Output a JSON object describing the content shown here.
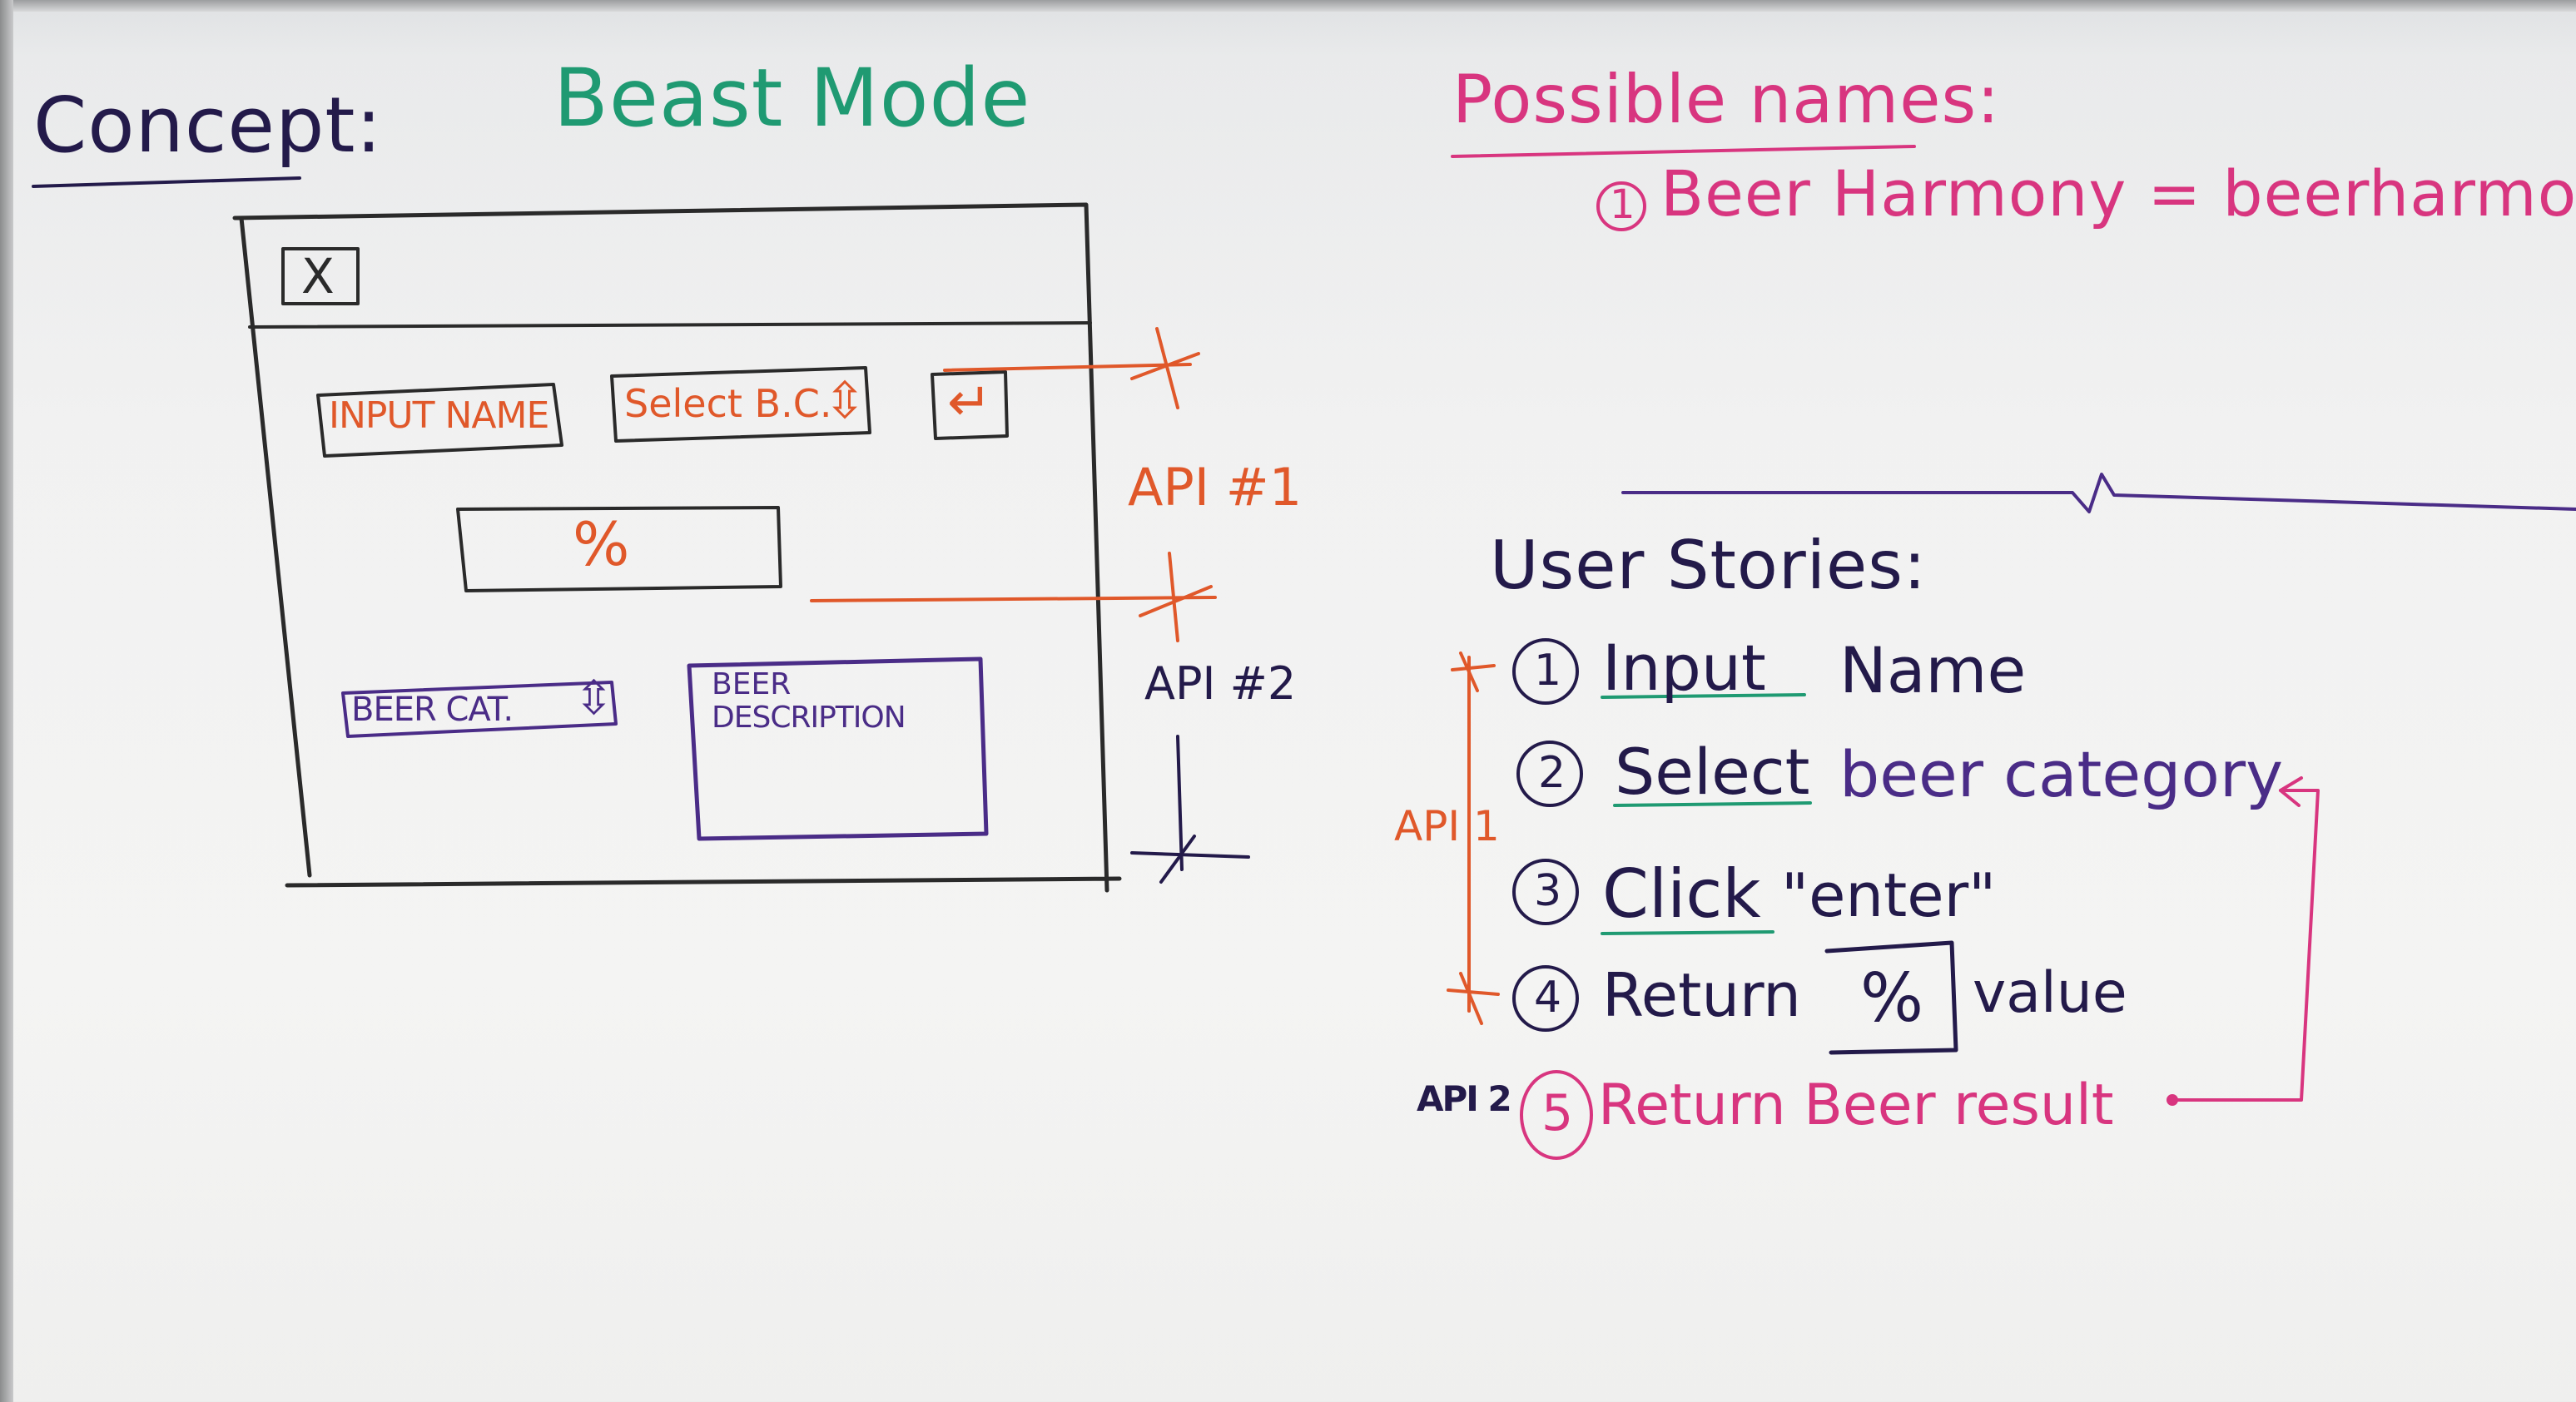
{
  "colors": {
    "green": "#1f9a72",
    "navy": "#231a4a",
    "orange": "#e0582a",
    "magenta": "#d8357f",
    "purple": "#4a2c87",
    "pen": "#2a2a2a"
  },
  "headings": {
    "concept": "Concept:",
    "beast_mode": "Beast Mode",
    "possible_names": "Possible names:",
    "name_1_num": "1",
    "name_1": "Beer Harmony = beerharmony",
    "user_stories": "User Stories:"
  },
  "mockup": {
    "close_icon": "close-icon",
    "close_glyph": "X",
    "input_name": "Input Name",
    "select_bc": "Select B.C.",
    "select_arrows": "⇳",
    "enter_icon": "enter-icon",
    "enter_glyph": "↵",
    "percent": "%",
    "beer_cat": "Beer Cat.",
    "beer_cat_arrows": "⇳",
    "beer_desc_1": "Beer",
    "beer_desc_2": "Description"
  },
  "api_labels": {
    "api_hash_1": "API #1",
    "api_hash_2": "API #2",
    "api_1": "API 1",
    "api_2": "API 2"
  },
  "stories": [
    {
      "num": "1",
      "text_a": "Input",
      "text_b": "Name"
    },
    {
      "num": "2",
      "text_a": "Select",
      "text_b": "beer category"
    },
    {
      "num": "3",
      "text_a": "Click",
      "text_b": "\"enter\""
    },
    {
      "num": "4",
      "text_a": "Return",
      "text_box": "%",
      "text_b": "value"
    },
    {
      "num": "5",
      "text_a": "Return Beer result"
    }
  ]
}
